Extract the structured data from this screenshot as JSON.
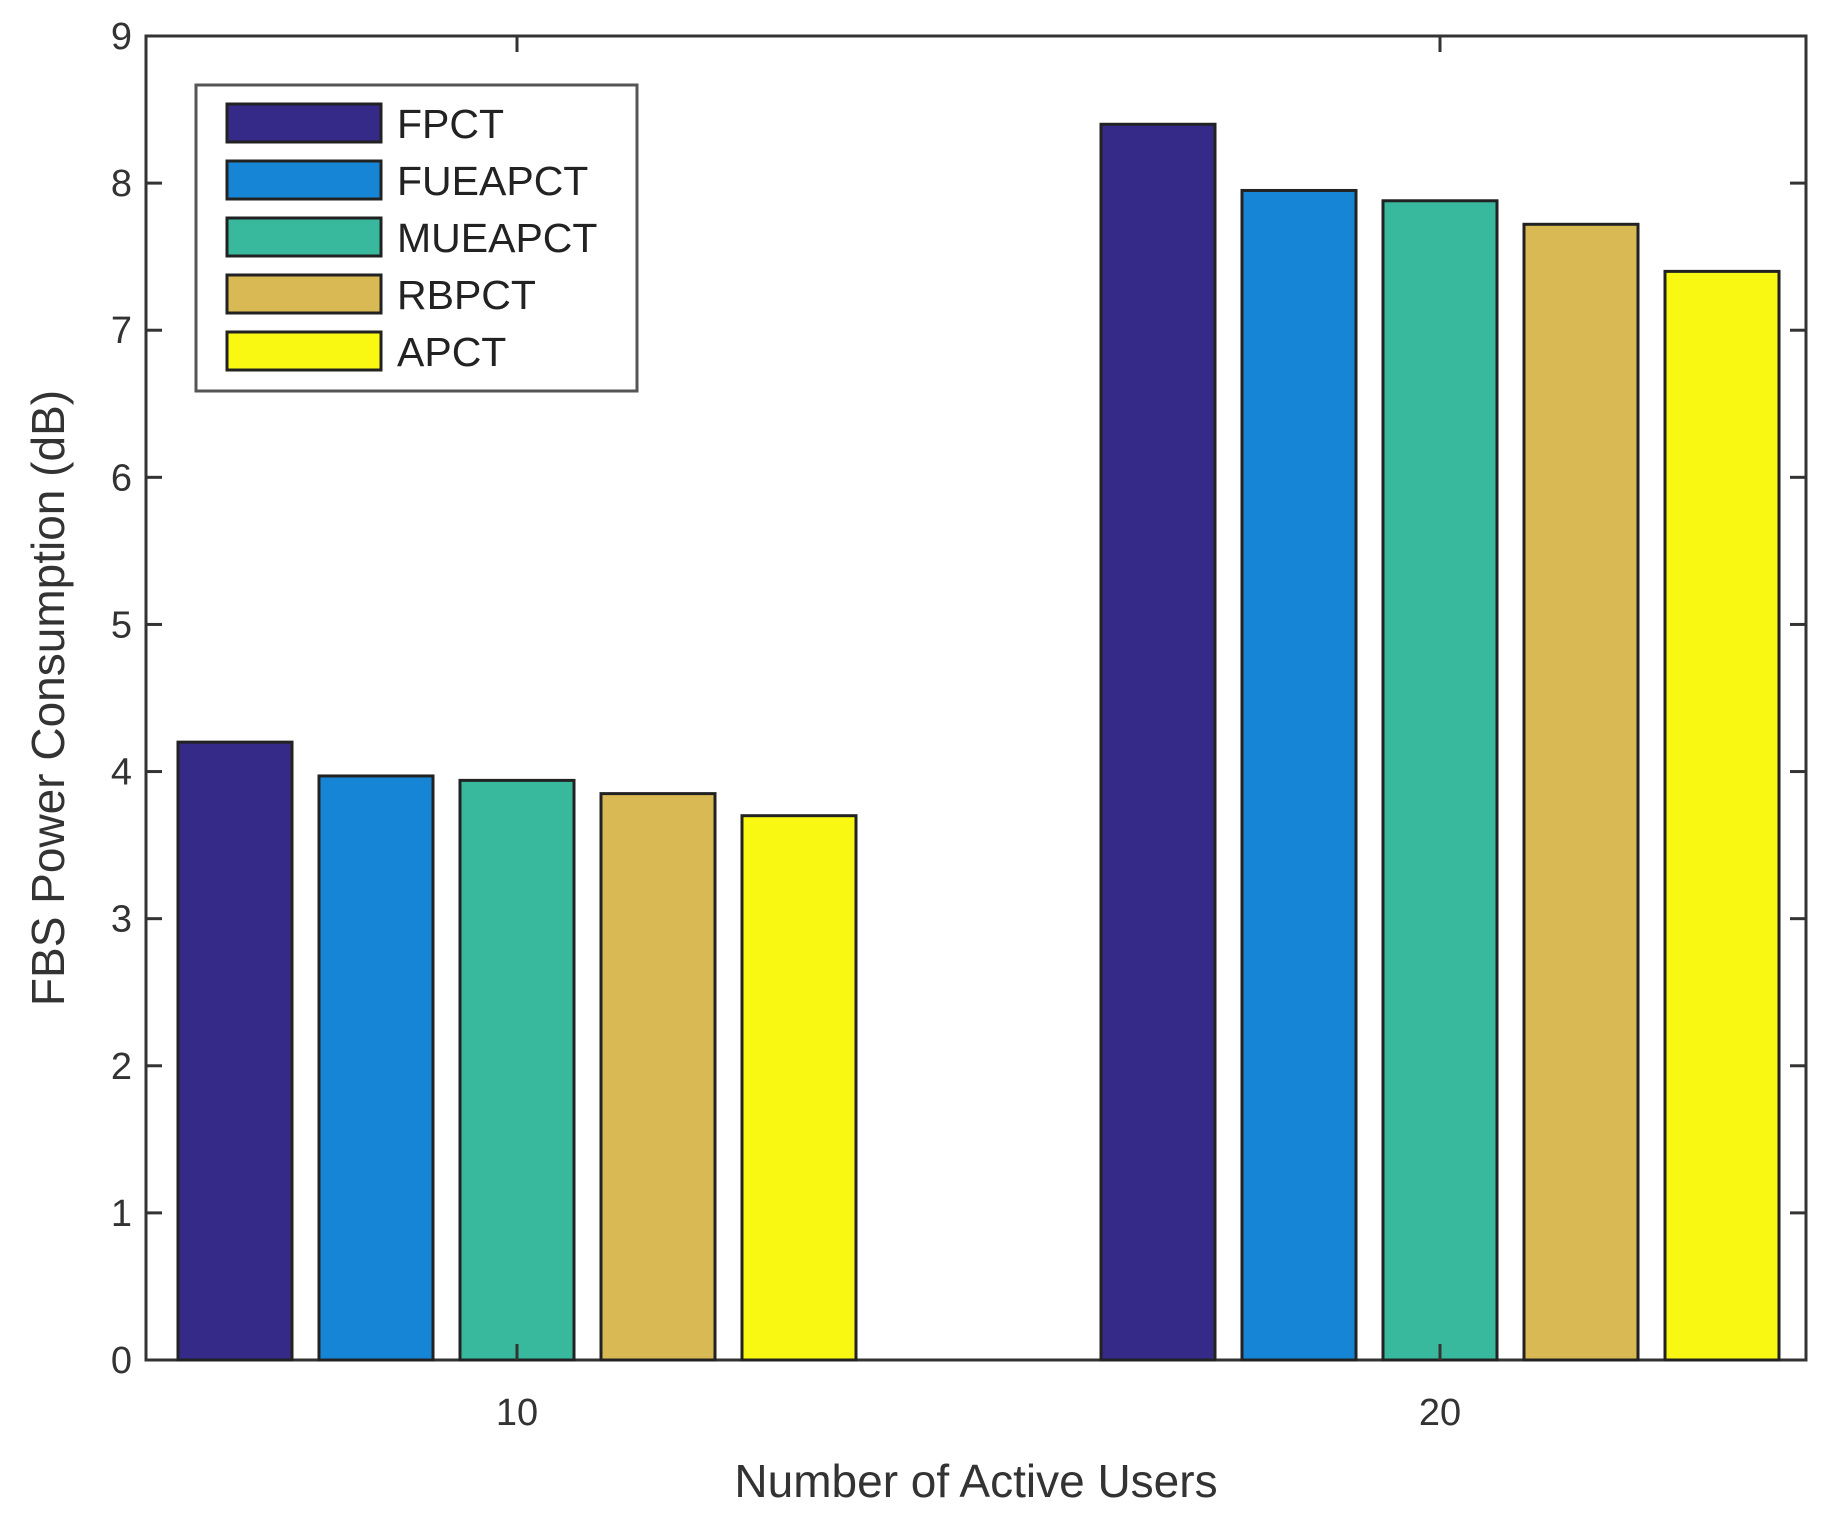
{
  "chart_data": {
    "type": "bar",
    "title": "",
    "xlabel": "Number of Active Users",
    "ylabel": "FBS Power Consumption (dB)",
    "categories": [
      "10",
      "20"
    ],
    "ylim": [
      0,
      9
    ],
    "yticks": [
      "0",
      "1",
      "2",
      "3",
      "4",
      "5",
      "6",
      "7",
      "8",
      "9"
    ],
    "grid": false,
    "legend_position": "top-left",
    "series": [
      {
        "name": "FPCT",
        "color": "#352a87",
        "values": [
          4.2,
          8.4
        ]
      },
      {
        "name": "FUEAPCT",
        "color": "#1785d6",
        "values": [
          3.97,
          7.95
        ]
      },
      {
        "name": "MUEAPCT",
        "color": "#38b99e",
        "values": [
          3.94,
          7.88
        ]
      },
      {
        "name": "RBPCT",
        "color": "#d8b953",
        "values": [
          3.85,
          7.72
        ]
      },
      {
        "name": "APCT",
        "color": "#f8f813",
        "values": [
          3.7,
          7.4
        ]
      }
    ]
  }
}
